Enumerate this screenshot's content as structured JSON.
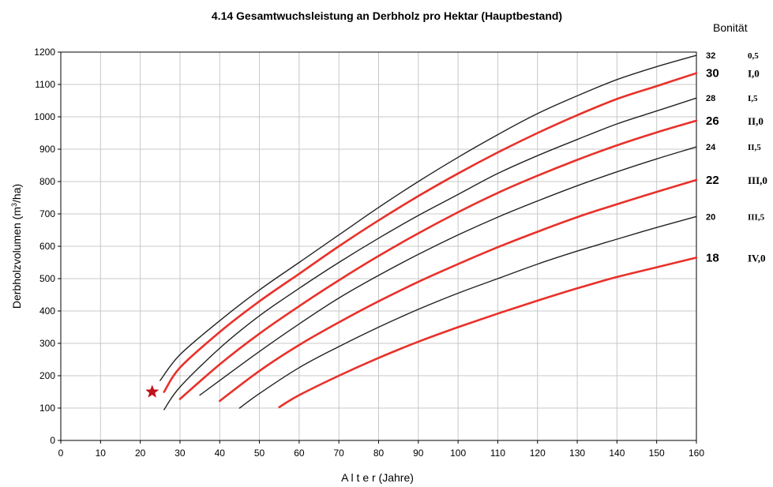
{
  "chart_data": {
    "type": "line",
    "title": "4.14 Gesamtwuchsleistung an Derbholz pro Hektar (Hauptbestand)",
    "xlabel_spaced": "A l t e r",
    "xlabel_unit": "(Jahre)",
    "ylabel_main": "Derbholzvolumen (m",
    "ylabel_sup": "3",
    "ylabel_end": "/ha)",
    "legend_title": "Bonität",
    "xlim": [
      0,
      160
    ],
    "ylim": [
      0,
      1200
    ],
    "xticks": [
      0,
      10,
      20,
      30,
      40,
      50,
      60,
      70,
      80,
      90,
      100,
      110,
      120,
      130,
      140,
      150,
      160
    ],
    "yticks": [
      0,
      100,
      200,
      300,
      400,
      500,
      600,
      700,
      800,
      900,
      1000,
      1100,
      1200
    ],
    "grid": true,
    "colors": {
      "thin": "#222222",
      "thick": "#e8312a",
      "grid": "#c8c8c8",
      "star": "#c0141c"
    },
    "series": [
      {
        "name": "32",
        "class_label": "0,5",
        "style": "thin",
        "points": [
          [
            25,
            185
          ],
          [
            30,
            265
          ],
          [
            40,
            370
          ],
          [
            50,
            465
          ],
          [
            60,
            550
          ],
          [
            70,
            635
          ],
          [
            80,
            720
          ],
          [
            90,
            800
          ],
          [
            100,
            875
          ],
          [
            110,
            945
          ],
          [
            120,
            1010
          ],
          [
            130,
            1065
          ],
          [
            140,
            1115
          ],
          [
            150,
            1155
          ],
          [
            160,
            1190
          ]
        ]
      },
      {
        "name": "30",
        "class_label": "I,0",
        "style": "thick",
        "points": [
          [
            26,
            150
          ],
          [
            30,
            225
          ],
          [
            40,
            335
          ],
          [
            50,
            430
          ],
          [
            60,
            515
          ],
          [
            70,
            600
          ],
          [
            80,
            680
          ],
          [
            90,
            755
          ],
          [
            100,
            825
          ],
          [
            110,
            890
          ],
          [
            120,
            950
          ],
          [
            130,
            1005
          ],
          [
            140,
            1055
          ],
          [
            150,
            1095
          ],
          [
            160,
            1135
          ]
        ]
      },
      {
        "name": "28",
        "class_label": "I,5",
        "style": "thin",
        "points": [
          [
            26,
            95
          ],
          [
            30,
            165
          ],
          [
            40,
            285
          ],
          [
            50,
            385
          ],
          [
            60,
            470
          ],
          [
            70,
            550
          ],
          [
            80,
            625
          ],
          [
            90,
            695
          ],
          [
            100,
            760
          ],
          [
            110,
            825
          ],
          [
            120,
            880
          ],
          [
            130,
            930
          ],
          [
            140,
            978
          ],
          [
            150,
            1018
          ],
          [
            160,
            1058
          ]
        ]
      },
      {
        "name": "26",
        "class_label": "II,0",
        "style": "thick",
        "points": [
          [
            30,
            128
          ],
          [
            40,
            235
          ],
          [
            50,
            330
          ],
          [
            60,
            415
          ],
          [
            70,
            495
          ],
          [
            80,
            570
          ],
          [
            90,
            640
          ],
          [
            100,
            705
          ],
          [
            110,
            765
          ],
          [
            120,
            818
          ],
          [
            130,
            867
          ],
          [
            140,
            912
          ],
          [
            150,
            952
          ],
          [
            160,
            988
          ]
        ]
      },
      {
        "name": "24",
        "class_label": "II,5",
        "style": "thin",
        "points": [
          [
            35,
            140
          ],
          [
            40,
            185
          ],
          [
            50,
            275
          ],
          [
            60,
            360
          ],
          [
            70,
            440
          ],
          [
            80,
            510
          ],
          [
            90,
            575
          ],
          [
            100,
            635
          ],
          [
            110,
            690
          ],
          [
            120,
            740
          ],
          [
            130,
            787
          ],
          [
            140,
            830
          ],
          [
            150,
            870
          ],
          [
            160,
            907
          ]
        ]
      },
      {
        "name": "22",
        "class_label": "III,0",
        "style": "thick",
        "points": [
          [
            40,
            122
          ],
          [
            50,
            215
          ],
          [
            60,
            295
          ],
          [
            70,
            365
          ],
          [
            80,
            430
          ],
          [
            90,
            490
          ],
          [
            100,
            545
          ],
          [
            110,
            597
          ],
          [
            120,
            645
          ],
          [
            130,
            690
          ],
          [
            140,
            730
          ],
          [
            150,
            768
          ],
          [
            160,
            805
          ]
        ]
      },
      {
        "name": "20",
        "class_label": "III,5",
        "style": "thin",
        "points": [
          [
            45,
            100
          ],
          [
            50,
            145
          ],
          [
            60,
            225
          ],
          [
            70,
            290
          ],
          [
            80,
            350
          ],
          [
            90,
            405
          ],
          [
            100,
            455
          ],
          [
            110,
            500
          ],
          [
            120,
            545
          ],
          [
            130,
            585
          ],
          [
            140,
            622
          ],
          [
            150,
            658
          ],
          [
            160,
            692
          ]
        ]
      },
      {
        "name": "18",
        "class_label": "IV,0",
        "style": "thick",
        "points": [
          [
            55,
            103
          ],
          [
            60,
            140
          ],
          [
            70,
            200
          ],
          [
            80,
            255
          ],
          [
            90,
            305
          ],
          [
            100,
            350
          ],
          [
            110,
            392
          ],
          [
            120,
            432
          ],
          [
            130,
            470
          ],
          [
            140,
            505
          ],
          [
            150,
            535
          ],
          [
            160,
            565
          ]
        ]
      }
    ],
    "marker": {
      "symbol": "star",
      "x": 23,
      "y": 150
    }
  }
}
